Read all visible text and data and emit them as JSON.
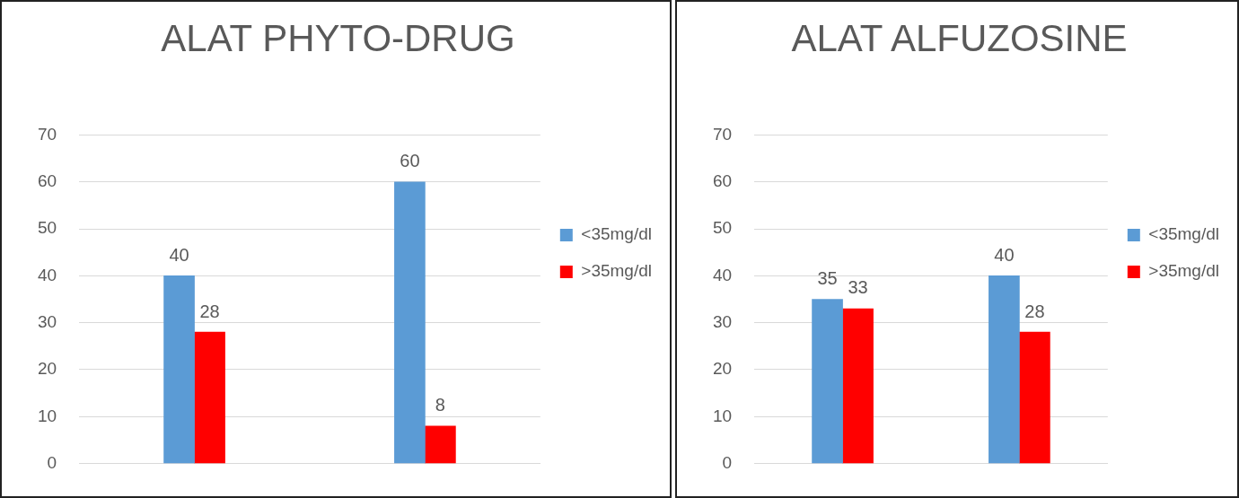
{
  "chart_data": [
    {
      "type": "bar",
      "title": "ALAT PHYTO-DRUG",
      "categories": [
        null,
        null
      ],
      "series": [
        {
          "name": "<35mg/dl",
          "color": "#5b9bd5",
          "values": [
            40,
            60
          ]
        },
        {
          "name": ">35mg/dl",
          "color": "#ff0000",
          "values": [
            28,
            8
          ]
        }
      ],
      "ylim": [
        0,
        70
      ],
      "yticks": [
        0,
        10,
        20,
        30,
        40,
        50,
        60,
        70
      ],
      "grid": "y",
      "legend": "right",
      "data_labels": true,
      "tick_labels": "y"
    },
    {
      "type": "bar",
      "title": "ALAT ALFUZOSINE",
      "categories": [
        null,
        null
      ],
      "series": [
        {
          "name": "<35mg/dl",
          "color": "#5b9bd5",
          "values": [
            35,
            40
          ]
        },
        {
          "name": ">35mg/dl",
          "color": "#ff0000",
          "values": [
            33,
            28
          ]
        }
      ],
      "ylim": [
        0,
        70
      ],
      "yticks": [
        0,
        10,
        20,
        30,
        40,
        50,
        60,
        70
      ],
      "grid": "y",
      "legend": "right",
      "data_labels": true,
      "tick_labels": "y"
    }
  ]
}
